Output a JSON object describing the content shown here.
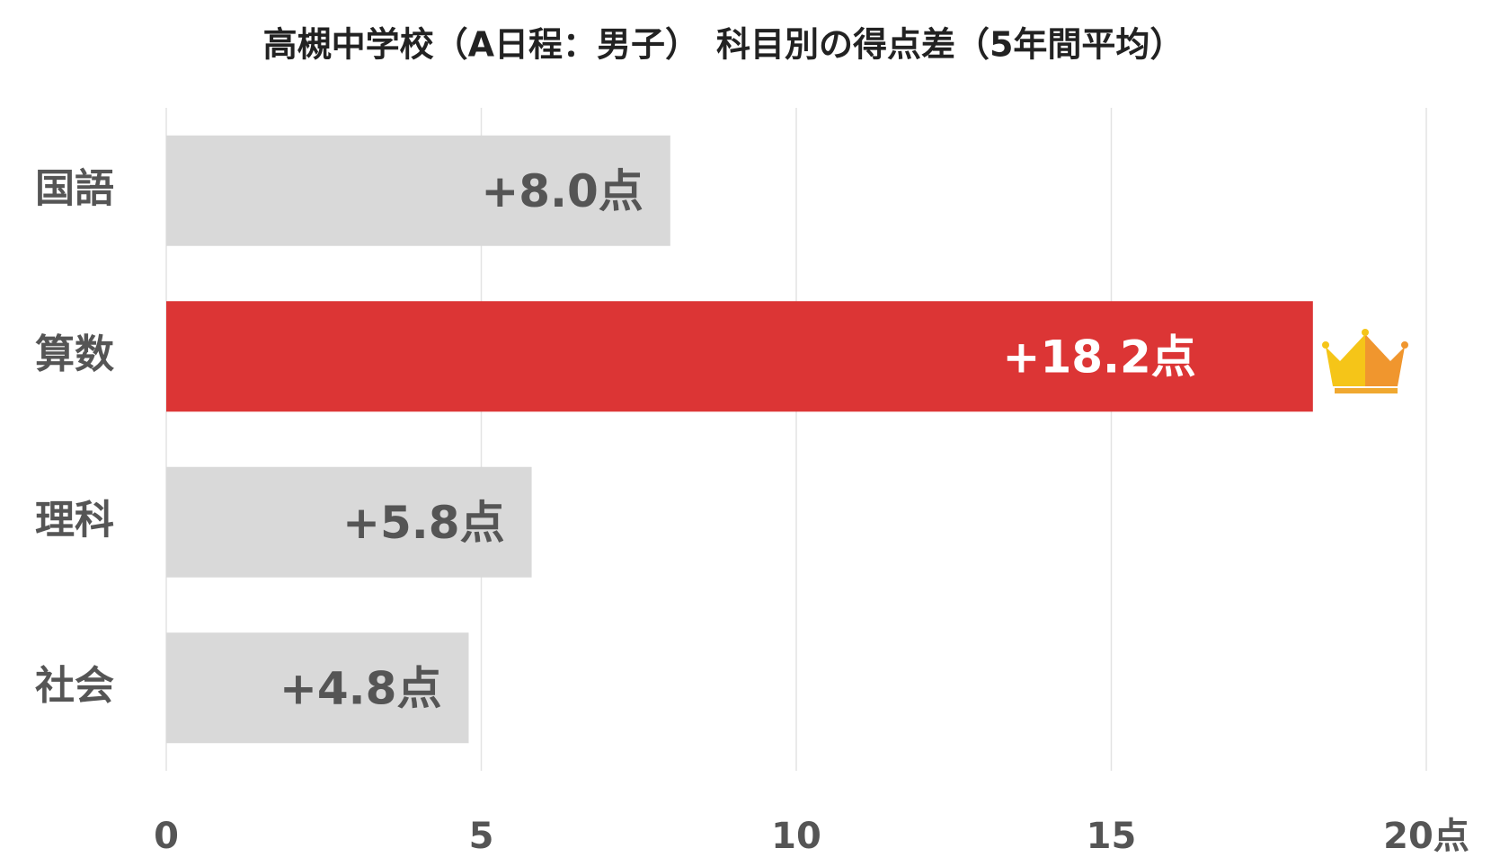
{
  "chart_data": {
    "type": "barh",
    "title": "高槻中学校（A日程：男子）　科目別の得点差（5年間平均）",
    "categories": [
      "国語",
      "算数",
      "理科",
      "社会"
    ],
    "values": [
      8.0,
      18.2,
      5.8,
      4.8
    ],
    "value_labels": [
      "+8.0点",
      "+18.2点",
      "+5.8点",
      "+4.8点"
    ],
    "colors": [
      "#d9d9d9",
      "#dc3535",
      "#d9d9d9",
      "#d9d9d9"
    ],
    "xlim": [
      0,
      20
    ],
    "xticks": [
      0,
      5,
      10,
      15,
      {
        "value": 20,
        "label": "20点"
      }
    ],
    "grid": true
  }
}
